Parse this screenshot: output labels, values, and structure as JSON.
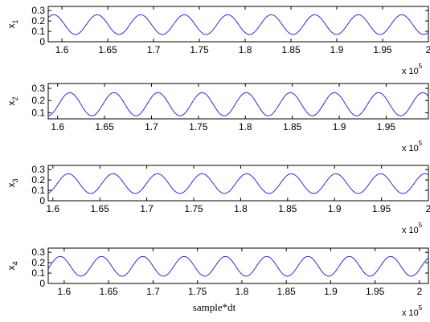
{
  "chart_data": [
    {
      "type": "line",
      "ylabel_main": "x",
      "ylabel_sub": "1",
      "xlabel": "",
      "x_ticks": [
        1.6,
        1.65,
        1.7,
        1.75,
        1.8,
        1.85,
        1.9,
        1.95,
        2
      ],
      "x_tick_labels": [
        "1.6",
        "1.65",
        "1.7",
        "1.75",
        "1.8",
        "1.85",
        "1.9",
        "1.95",
        "2"
      ],
      "y_ticks": [
        0,
        0.1,
        0.2,
        0.3
      ],
      "y_tick_labels": [
        "0",
        "0.1",
        "0.2",
        "0.3"
      ],
      "xlim": [
        1.585,
        2.0
      ],
      "ylim": [
        0,
        0.34
      ],
      "x_multiplier_base": "x 10",
      "x_multiplier_exp": "5",
      "series": [
        {
          "color": "#2b2bd6",
          "signal": {
            "mean": 0.165,
            "amplitude": 0.095,
            "period": 0.0475,
            "first_peak": 1.6385
          }
        }
      ]
    },
    {
      "type": "line",
      "ylabel_main": "x",
      "ylabel_sub": "2",
      "xlabel": "",
      "x_ticks": [
        1.6,
        1.65,
        1.7,
        1.75,
        1.8,
        1.85,
        1.9,
        1.95
      ],
      "x_tick_labels": [
        "1.6",
        "1.65",
        "1.7",
        "1.75",
        "1.8",
        "1.85",
        "1.9",
        "1.95"
      ],
      "y_ticks": [
        0.1,
        0.2,
        0.3
      ],
      "y_tick_labels": [
        "0.1",
        "0.2",
        "0.3"
      ],
      "xlim": [
        1.59,
        1.995
      ],
      "ylim": [
        0.05,
        0.34
      ],
      "x_multiplier_base": "x 10",
      "x_multiplier_exp": "5",
      "series": [
        {
          "color": "#2b2bd6",
          "signal": {
            "mean": 0.17,
            "amplitude": 0.095,
            "period": 0.047,
            "first_peak": 1.613
          }
        }
      ]
    },
    {
      "type": "line",
      "ylabel_main": "x",
      "ylabel_sub": "3",
      "xlabel": "",
      "x_ticks": [
        1.6,
        1.65,
        1.7,
        1.75,
        1.8,
        1.85,
        1.9,
        1.95,
        2
      ],
      "x_tick_labels": [
        "1.6",
        "1.65",
        "1.7",
        "1.75",
        "1.8",
        "1.85",
        "1.9",
        "1.95",
        "2"
      ],
      "y_ticks": [
        0,
        0.1,
        0.2,
        0.3
      ],
      "y_tick_labels": [
        "0",
        "0.1",
        "0.2",
        "0.3"
      ],
      "xlim": [
        1.595,
        2.0
      ],
      "ylim": [
        0,
        0.34
      ],
      "x_multiplier_base": "x 10",
      "x_multiplier_exp": "5",
      "series": [
        {
          "color": "#2b2bd6",
          "signal": {
            "mean": 0.165,
            "amplitude": 0.095,
            "period": 0.0475,
            "first_peak": 1.6165
          }
        }
      ]
    },
    {
      "type": "line",
      "ylabel_main": "x",
      "ylabel_sub": "4",
      "xlabel": "sample*dt",
      "x_ticks": [
        1.6,
        1.65,
        1.7,
        1.75,
        1.8,
        1.85,
        1.9,
        1.95,
        2
      ],
      "x_tick_labels": [
        "1.6",
        "1.65",
        "1.7",
        "1.75",
        "1.8",
        "1.85",
        "1.9",
        "1.95",
        "2"
      ],
      "y_ticks": [
        0,
        0.1,
        0.2,
        0.3
      ],
      "y_tick_labels": [
        "0",
        "0.1",
        "0.2",
        "0.3"
      ],
      "xlim": [
        1.582,
        2.01
      ],
      "ylim": [
        0,
        0.34
      ],
      "x_multiplier_base": "x 10",
      "x_multiplier_exp": "5",
      "series": [
        {
          "color": "#2b2bd6",
          "signal": {
            "mean": 0.165,
            "amplitude": 0.095,
            "period": 0.0465,
            "first_peak": 1.5955
          }
        }
      ]
    }
  ]
}
